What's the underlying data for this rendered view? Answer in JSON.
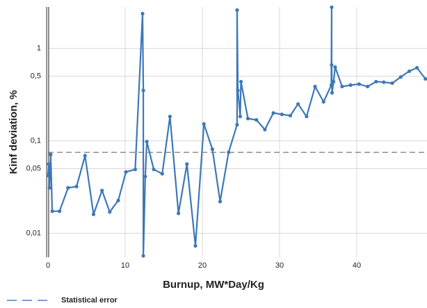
{
  "chart_data": {
    "type": "line",
    "x_label": "Burnup, MW*Day/Kg",
    "y_label": "Kinf deviation, %",
    "log_y": true,
    "grid": true,
    "xlim": [
      0,
      49.1
    ],
    "xticks": [
      0,
      10,
      20,
      30,
      40
    ],
    "ylim": [
      0.0055,
      2.8
    ],
    "yticks": [
      {
        "value": 0.01,
        "label": "0,01"
      },
      {
        "value": 0.05,
        "label": "0,05"
      },
      {
        "value": 0.1,
        "label": "0,1"
      },
      {
        "value": 0.5,
        "label": "0,5"
      },
      1
    ],
    "reference_line": {
      "name": "Statistical error",
      "value": 0.075,
      "color": "#555555"
    },
    "series": [
      {
        "name": "Kinf deviation",
        "color": "#3c78b8",
        "x": [
          0,
          0.1,
          0.2,
          0.35,
          0.55,
          1.5,
          2.6,
          3.7,
          4.8,
          5.9,
          7.0,
          8.0,
          9.1,
          10.1,
          11.3,
          12.25,
          12.35,
          12.35,
          12.6,
          12.8,
          13.7,
          14.8,
          15.8,
          16.9,
          18.0,
          19.1,
          20.2,
          21.3,
          22.3,
          23.4,
          24.5,
          24.5,
          24.6,
          24.9,
          25.0,
          25.9,
          27.0,
          28.1,
          29.2,
          30.3,
          31.4,
          32.4,
          33.5,
          34.6,
          35.7,
          36.7,
          36.75,
          36.75,
          36.8,
          37.0,
          37.2,
          38.1,
          39.2,
          40.3,
          41.4,
          42.5,
          43.5,
          44.6,
          45.7,
          46.8,
          47.8,
          48.9
        ],
        "values": [
          0.042,
          0.056,
          0.031,
          0.071,
          0.0173,
          0.0173,
          0.031,
          0.032,
          0.069,
          0.016,
          0.029,
          0.017,
          0.0226,
          0.046,
          0.049,
          2.37,
          0.35,
          0.0057,
          0.041,
          0.098,
          0.049,
          0.044,
          0.183,
          0.0164,
          0.056,
          0.0073,
          0.152,
          0.081,
          0.022,
          0.075,
          0.149,
          2.59,
          0.35,
          0.183,
          0.436,
          0.174,
          0.168,
          0.132,
          0.2,
          0.193,
          0.187,
          0.25,
          0.183,
          0.386,
          0.264,
          0.4,
          2.78,
          0.66,
          0.33,
          0.436,
          0.627,
          0.386,
          0.4,
          0.41,
          0.386,
          0.436,
          0.43,
          0.42,
          0.49,
          0.565,
          0.616,
          0.467
        ]
      }
    ]
  }
}
